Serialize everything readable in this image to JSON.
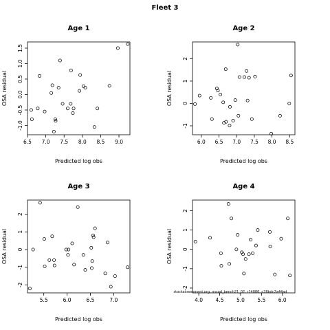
{
  "title": "Fleet 3",
  "note": "stockassessment.org, nscod_bench21_02, r14086, c28bdc2a44ad",
  "chart_data": [
    {
      "type": "scatter",
      "title": "Age 1",
      "xlabel": "Predicted log obs",
      "ylabel": "OSA residual",
      "xlim": [
        6.5,
        9.3
      ],
      "ylim": [
        -1.3,
        1.7
      ],
      "xticks": [
        "6.5",
        "7.0",
        "7.5",
        "8.0",
        "8.5",
        "9.0"
      ],
      "yticks": [
        "-1.0",
        "-0.5",
        "0.0",
        "0.5",
        "1.0",
        "1.5"
      ],
      "x": [
        6.6,
        6.62,
        6.78,
        6.83,
        6.97,
        7.15,
        7.18,
        7.22,
        7.26,
        7.27,
        7.35,
        7.39,
        7.46,
        7.6,
        7.68,
        7.69,
        7.74,
        7.76,
        7.92,
        7.94,
        8.03,
        8.08,
        8.33,
        8.41,
        8.74,
        8.97,
        9.24
      ],
      "y": [
        -0.5,
        -0.8,
        -0.45,
        0.6,
        -0.55,
        0.05,
        0.3,
        -1.2,
        -0.8,
        -0.85,
        0.22,
        1.1,
        -0.3,
        -0.45,
        -0.3,
        0.78,
        -0.6,
        -0.45,
        0.12,
        0.63,
        0.27,
        0.22,
        -1.05,
        -0.45,
        0.28,
        1.5,
        1.63
      ]
    },
    {
      "type": "scatter",
      "title": "Age 2",
      "xlabel": "Predicted log obs",
      "ylabel": "OSA residual",
      "xlim": [
        5.75,
        8.65
      ],
      "ylim": [
        -1.4,
        2.75
      ],
      "xticks": [
        "6.0",
        "6.5",
        "7.0",
        "7.5",
        "8.0",
        "8.5"
      ],
      "yticks": [
        "-1",
        "0",
        "1",
        "2"
      ],
      "x": [
        5.82,
        5.95,
        6.27,
        6.3,
        6.44,
        6.47,
        6.54,
        6.62,
        6.64,
        6.69,
        6.7,
        6.8,
        6.81,
        6.9,
        6.96,
        7.03,
        7.05,
        7.08,
        7.22,
        7.28,
        7.31,
        7.35,
        7.43,
        7.52,
        7.98,
        8.23,
        8.49,
        8.54
      ],
      "y": [
        -0.03,
        0.35,
        0.25,
        -0.7,
        0.67,
        0.58,
        0.4,
        0.05,
        -0.87,
        1.53,
        -0.82,
        -0.99,
        -0.15,
        -0.77,
        0.15,
        2.63,
        -0.55,
        1.18,
        1.18,
        1.45,
        0.13,
        1.15,
        -0.7,
        1.2,
        -1.35,
        -0.55,
        0.0,
        1.25
      ]
    },
    {
      "type": "scatter",
      "title": "Age 3",
      "xlabel": "Predicted log obs",
      "ylabel": "OSA residual",
      "xlim": [
        5.15,
        7.35
      ],
      "ylim": [
        -2.45,
        2.8
      ],
      "xticks": [
        "5.5",
        "6.0",
        "6.5",
        "7.0"
      ],
      "yticks": [
        "-2",
        "-1",
        "0",
        "1",
        "2"
      ],
      "x": [
        5.2,
        5.27,
        5.42,
        5.51,
        5.52,
        5.62,
        5.68,
        5.72,
        5.73,
        5.98,
        6.02,
        6.03,
        6.11,
        6.15,
        6.23,
        6.35,
        6.39,
        6.52,
        6.53,
        6.54,
        6.56,
        6.57,
        6.6,
        6.82,
        6.87,
        6.94,
        7.03,
        7.3
      ],
      "y": [
        -2.2,
        0.0,
        2.65,
        0.6,
        -0.95,
        -0.6,
        0.75,
        -0.6,
        -0.9,
        0.0,
        -0.3,
        0.0,
        0.35,
        -0.85,
        2.4,
        -0.3,
        -1.15,
        0.1,
        -1.05,
        -0.65,
        0.8,
        0.7,
        1.2,
        -1.35,
        0.4,
        -2.1,
        -1.5,
        -1.0
      ]
    },
    {
      "type": "scatter",
      "title": "Age 4",
      "xlabel": "Predicted log obs",
      "ylabel": "OSA residual",
      "xlim": [
        3.85,
        6.3
      ],
      "ylim": [
        -2.25,
        2.55
      ],
      "xticks": [
        "4.0",
        "4.5",
        "5.0",
        "5.5",
        "6.0"
      ],
      "yticks": [
        "-2",
        "-1",
        "0",
        "1",
        "2"
      ],
      "x": [
        3.92,
        4.27,
        4.53,
        4.54,
        4.71,
        4.73,
        4.78,
        4.9,
        4.93,
        5.03,
        5.06,
        5.08,
        5.12,
        5.2,
        5.24,
        5.29,
        5.37,
        5.41,
        5.7,
        5.71,
        5.82,
        5.97,
        6.13,
        6.18
      ],
      "y": [
        0.4,
        0.6,
        -0.2,
        -0.85,
        2.35,
        -0.75,
        1.6,
        0.0,
        0.75,
        -0.15,
        -0.25,
        -1.25,
        -0.5,
        -0.25,
        0.5,
        -0.2,
        0.2,
        1.0,
        0.9,
        0.15,
        -1.3,
        0.55,
        1.6,
        -1.35
      ]
    }
  ]
}
